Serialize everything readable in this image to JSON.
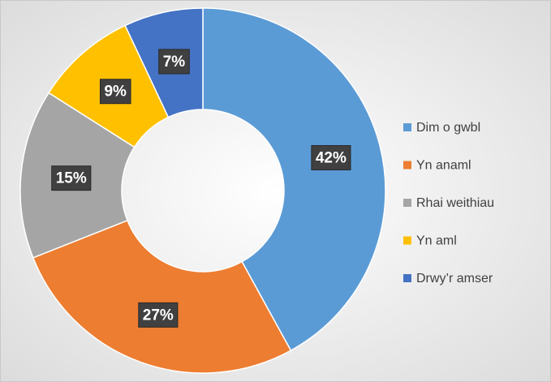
{
  "chart_data": {
    "type": "donut",
    "categories": [
      "Dim o gwbl",
      "Yn anaml",
      "Rhai weithiau",
      "Yn aml",
      "Drwy’r amser"
    ],
    "values": [
      42,
      27,
      15,
      9,
      7
    ],
    "value_labels": [
      "42%",
      "27%",
      "15%",
      "9%",
      "7%"
    ],
    "colors": [
      "#5b9bd5",
      "#ed7d31",
      "#a5a5a5",
      "#ffc000",
      "#4472c4"
    ],
    "legend": "right"
  }
}
